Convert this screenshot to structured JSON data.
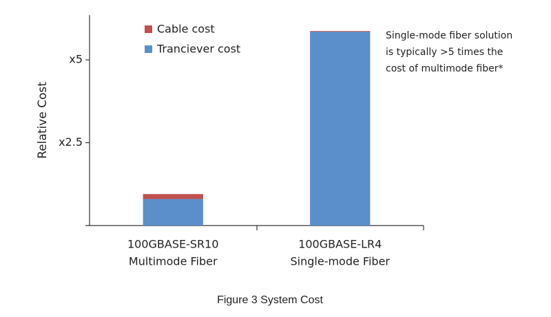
{
  "chart_data": {
    "type": "stacked-bar",
    "y_label": "Relative Cost",
    "categories": [
      [
        "100GBASE-SR10",
        "Multimode Fiber"
      ],
      [
        "100GBASE-LR4",
        "Single-mode Fiber"
      ]
    ],
    "series": [
      {
        "name": "Cable cost",
        "color": "#c0504d",
        "values": [
          0.15,
          0.02
        ]
      },
      {
        "name": "Tranciever cost",
        "color": "#5b8fcc",
        "values": [
          0.8,
          5.85
        ]
      }
    ],
    "ylim": [
      0,
      6.35
    ],
    "yticks": [
      {
        "value": 2.5,
        "label": "x2.5"
      },
      {
        "value": 5,
        "label": "x5"
      }
    ],
    "annotation": [
      "Single-mode fiber solution",
      "is typically >5 times the",
      "cost of multimode fiber*"
    ],
    "caption": "Figure 3 System Cost"
  }
}
